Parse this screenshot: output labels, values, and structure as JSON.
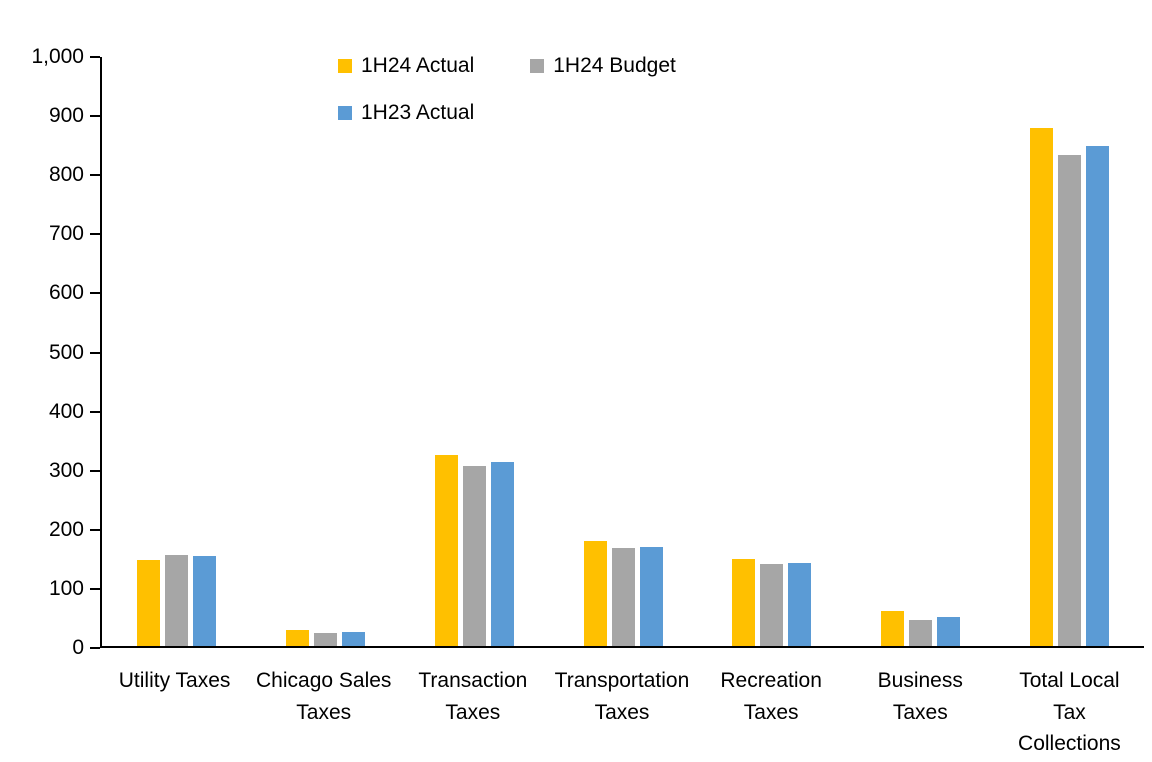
{
  "chart_data": {
    "type": "bar",
    "title": "",
    "xlabel": "",
    "ylabel": "",
    "categories": [
      "Utility Taxes",
      "Chicago Sales\nTaxes",
      "Transaction\nTaxes",
      "Transportation\nTaxes",
      "Recreation\nTaxes",
      "Business\nTaxes",
      "Total Local\nTax\nCollections"
    ],
    "series": [
      {
        "name": "1H24 Actual",
        "color": "#FFC000",
        "values": [
          146,
          27,
          325,
          178,
          147,
          60,
          880
        ]
      },
      {
        "name": "1H24 Budget",
        "color": "#A6A6A6",
        "values": [
          155,
          22,
          306,
          167,
          140,
          45,
          834
        ]
      },
      {
        "name": "1H23 Actual",
        "color": "#5B9BD5",
        "values": [
          152,
          24,
          313,
          168,
          141,
          50,
          849
        ]
      }
    ],
    "ylim": [
      0,
      1000
    ],
    "ytick_step": 100,
    "grid": false,
    "legend_position": "top-inside",
    "axis_color": "#000000",
    "background": "#FFFFFF"
  }
}
